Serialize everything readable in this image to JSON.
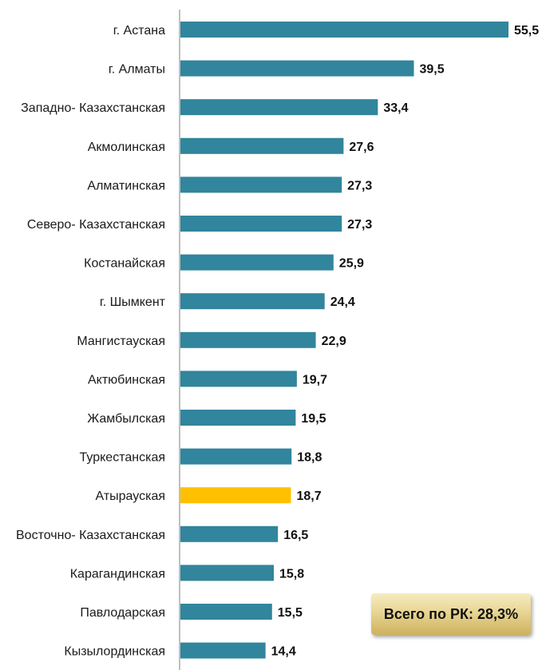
{
  "chart_data": {
    "type": "bar",
    "orientation": "horizontal",
    "categories": [
      "г. Астана",
      "г. Алматы",
      "Западно- Казахстанская",
      "Акмолинская",
      "Алматинская",
      "Северо- Казахстанская",
      "Костанайская",
      "г. Шымкент",
      "Мангистауская",
      "Актюбинская",
      "Жамбылская",
      "Туркестанская",
      "Атырауская",
      "Восточно- Казахстанская",
      "Карагандинская",
      "Павлодарская",
      "Кызылординская"
    ],
    "values": [
      55.5,
      39.5,
      33.4,
      27.6,
      27.3,
      27.3,
      25.9,
      24.4,
      22.9,
      19.7,
      19.5,
      18.8,
      18.7,
      16.5,
      15.8,
      15.5,
      14.4
    ],
    "value_labels": [
      "55,5",
      "39,5",
      "33,4",
      "27,6",
      "27,3",
      "27,3",
      "25,9",
      "24,4",
      "22,9",
      "19,7",
      "19,5",
      "18,8",
      "18,7",
      "16,5",
      "15,8",
      "15,5",
      "14,4"
    ],
    "highlight_category": "Атырауская",
    "colors": {
      "bar": "#31859c",
      "highlight": "#ffc000",
      "axis": "#7f7f7f"
    },
    "xlim": [
      0,
      55.5
    ],
    "grid": false,
    "legend": "none"
  },
  "total_badge": {
    "label": "Всего по РК: 28,3%"
  }
}
